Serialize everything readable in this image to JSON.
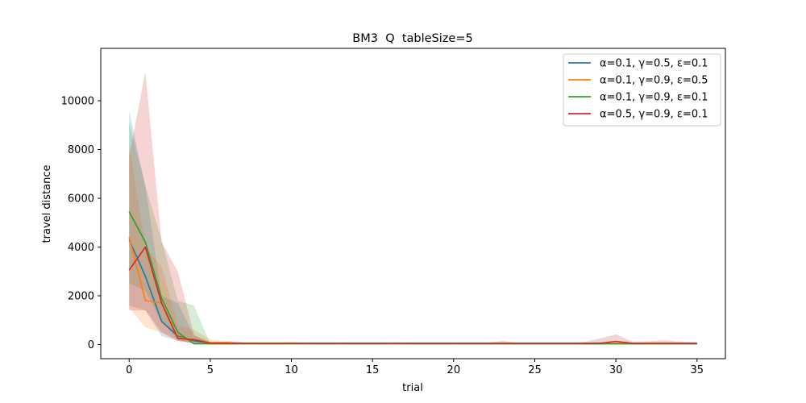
{
  "chart_data": {
    "type": "line",
    "title": "BM3  Q  tableSize=5",
    "xlabel": "trial",
    "ylabel": "travel distance",
    "xlim": [
      -1.75,
      36.75
    ],
    "ylim": [
      -580,
      12150
    ],
    "xticks": [
      0,
      5,
      10,
      15,
      20,
      25,
      30,
      35
    ],
    "xtick_labels": [
      "0",
      "5",
      "10",
      "15",
      "20",
      "25",
      "30",
      "35"
    ],
    "yticks": [
      0,
      2000,
      4000,
      6000,
      8000,
      10000
    ],
    "ytick_labels": [
      "0",
      "2000",
      "4000",
      "6000",
      "8000",
      "10000"
    ],
    "grid": false,
    "legend_position": "top-right",
    "x": [
      0,
      1,
      2,
      3,
      4,
      5,
      6,
      7,
      8,
      9,
      10,
      11,
      12,
      13,
      14,
      15,
      16,
      17,
      18,
      19,
      20,
      21,
      22,
      23,
      24,
      25,
      26,
      27,
      28,
      29,
      30,
      31,
      32,
      33,
      34,
      35
    ],
    "series": [
      {
        "name": "α=0.1, γ=0.5, ε=0.1",
        "color": "#1f77b4",
        "values": [
          4300,
          2800,
          950,
          350,
          150,
          60,
          50,
          40,
          40,
          40,
          40,
          40,
          35,
          40,
          35,
          35,
          40,
          40,
          35,
          35,
          40,
          35,
          35,
          40,
          35,
          35,
          35,
          35,
          35,
          35,
          45,
          35,
          35,
          40,
          35,
          35
        ],
        "lower": [
          1600,
          1400,
          350,
          150,
          50,
          40,
          30,
          30,
          30,
          30,
          30,
          30,
          25,
          30,
          25,
          25,
          30,
          30,
          25,
          25,
          30,
          25,
          25,
          30,
          25,
          25,
          25,
          25,
          25,
          25,
          30,
          25,
          25,
          30,
          25,
          25
        ],
        "upper": [
          9600,
          6500,
          2000,
          1700,
          350,
          100,
          80,
          60,
          60,
          60,
          60,
          60,
          50,
          60,
          50,
          50,
          60,
          60,
          50,
          50,
          60,
          50,
          50,
          60,
          50,
          50,
          50,
          50,
          50,
          50,
          70,
          50,
          50,
          60,
          50,
          50
        ]
      },
      {
        "name": "α=0.1, γ=0.9, ε=0.5",
        "color": "#ff7f0e",
        "values": [
          4400,
          1800,
          1700,
          300,
          200,
          80,
          80,
          55,
          55,
          55,
          55,
          50,
          50,
          50,
          50,
          50,
          50,
          50,
          45,
          45,
          50,
          45,
          45,
          50,
          45,
          45,
          45,
          45,
          45,
          45,
          50,
          45,
          45,
          50,
          45,
          45
        ],
        "lower": [
          1500,
          700,
          500,
          150,
          60,
          50,
          50,
          40,
          40,
          40,
          40,
          35,
          35,
          35,
          35,
          35,
          35,
          35,
          30,
          30,
          35,
          30,
          30,
          35,
          30,
          30,
          30,
          30,
          30,
          30,
          35,
          30,
          30,
          35,
          30,
          30
        ],
        "upper": [
          8200,
          4000,
          3200,
          800,
          600,
          200,
          150,
          100,
          90,
          90,
          90,
          80,
          80,
          80,
          80,
          80,
          80,
          80,
          70,
          70,
          80,
          70,
          70,
          80,
          70,
          70,
          70,
          70,
          70,
          70,
          80,
          70,
          70,
          80,
          70,
          70
        ]
      },
      {
        "name": "α=0.1, γ=0.9, ε=0.1",
        "color": "#2ca02c",
        "values": [
          5450,
          4200,
          1900,
          500,
          30,
          30,
          30,
          30,
          30,
          30,
          30,
          30,
          30,
          30,
          30,
          30,
          30,
          30,
          30,
          30,
          30,
          30,
          30,
          30,
          30,
          30,
          30,
          30,
          30,
          30,
          30,
          30,
          30,
          30,
          30,
          30
        ],
        "lower": [
          2500,
          2200,
          900,
          200,
          20,
          20,
          20,
          20,
          20,
          20,
          20,
          20,
          20,
          20,
          20,
          20,
          20,
          20,
          20,
          20,
          20,
          20,
          20,
          20,
          20,
          20,
          20,
          20,
          20,
          20,
          20,
          20,
          20,
          20,
          20,
          20
        ],
        "upper": [
          9100,
          6500,
          4300,
          1800,
          1600,
          40,
          40,
          40,
          40,
          40,
          40,
          40,
          40,
          40,
          40,
          40,
          40,
          40,
          40,
          40,
          40,
          40,
          40,
          40,
          40,
          40,
          40,
          40,
          40,
          40,
          40,
          40,
          40,
          40,
          40,
          40
        ]
      },
      {
        "name": "α=0.5, γ=0.9, ε=0.1",
        "color": "#d62728",
        "values": [
          3050,
          4000,
          1700,
          250,
          200,
          50,
          50,
          50,
          50,
          50,
          50,
          50,
          50,
          50,
          50,
          50,
          50,
          50,
          50,
          50,
          50,
          50,
          50,
          50,
          50,
          50,
          50,
          50,
          50,
          50,
          130,
          50,
          50,
          50,
          50,
          50
        ],
        "lower": [
          1400,
          1400,
          500,
          150,
          60,
          30,
          30,
          30,
          30,
          30,
          30,
          30,
          30,
          30,
          30,
          30,
          30,
          30,
          30,
          30,
          30,
          30,
          30,
          30,
          30,
          30,
          30,
          30,
          30,
          30,
          40,
          30,
          30,
          30,
          30,
          30
        ],
        "upper": [
          7700,
          11200,
          4200,
          3000,
          400,
          100,
          80,
          70,
          70,
          70,
          90,
          70,
          70,
          70,
          70,
          70,
          70,
          70,
          70,
          70,
          70,
          70,
          70,
          150,
          70,
          70,
          70,
          70,
          100,
          250,
          420,
          120,
          140,
          170,
          120,
          90
        ]
      }
    ]
  }
}
